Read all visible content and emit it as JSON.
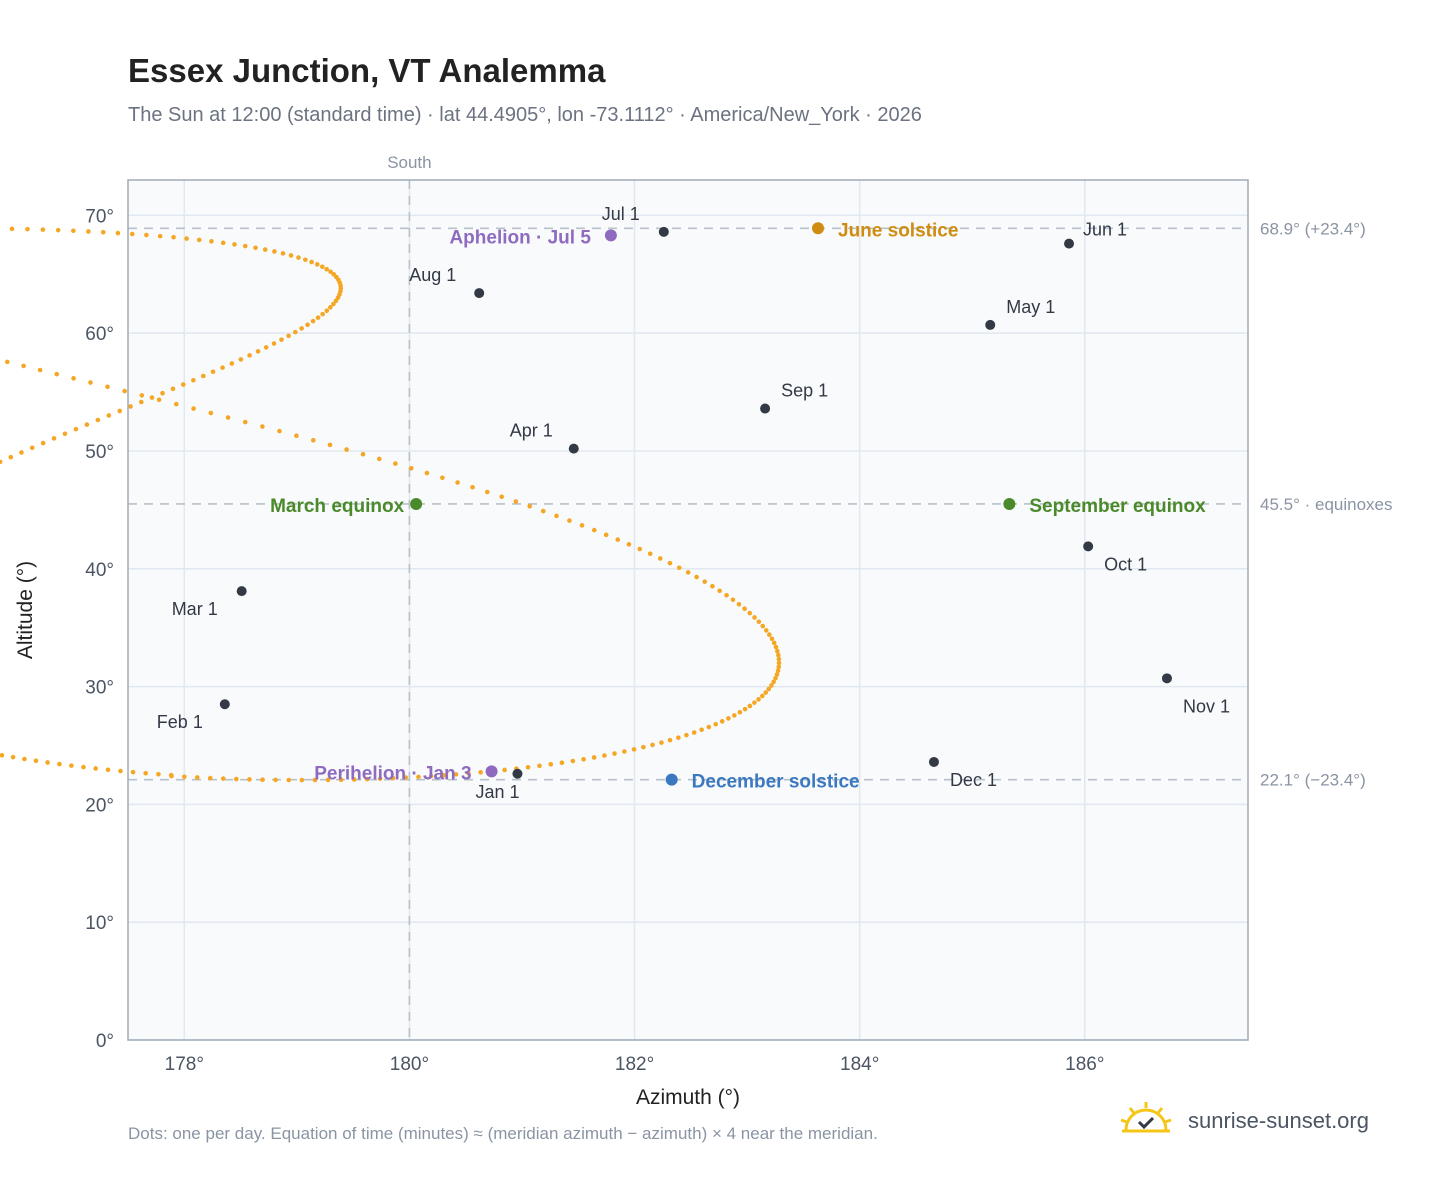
{
  "header": {
    "title": "Essex Junction, VT Analemma",
    "subtitle": "The Sun at 12:00 (standard time) · lat 44.4905°, lon -73.1112° · America/New_York · 2026"
  },
  "footer": {
    "note": "Dots: one per day. Equation of time (minutes) ≈ (meridian azimuth − azimuth) × 4 near the meridian.",
    "brand": "sunrise-sunset.org",
    "brand_icon": "sun-check-icon"
  },
  "colors": {
    "path": "#f5a623",
    "month_marker": "#333a45",
    "equinox": "#4a8a2a",
    "june_solstice": "#d08c10",
    "december_solstice": "#3a78c0",
    "apsis": "#8e6bbf",
    "reference_line": "#b8c2cc",
    "plot_bg": "#f8fafc",
    "grid": "#e2e8f0"
  },
  "chart_data": {
    "type": "scatter",
    "xlabel": "Azimuth (°)",
    "ylabel": "Altitude (°)",
    "xlim": [
      177.5,
      187.45
    ],
    "ylim": [
      0,
      73
    ],
    "x_ticks": [
      "178°",
      "180°",
      "182°",
      "184°",
      "186°"
    ],
    "y_ticks": [
      "0°",
      "10°",
      "20°",
      "30°",
      "40°",
      "50°",
      "60°",
      "70°"
    ],
    "grid": true,
    "meridian": {
      "azimuth": 180,
      "label": "South"
    },
    "reference_lines": [
      {
        "altitude": 68.9,
        "label": "68.9° (+23.4°)"
      },
      {
        "altitude": 45.5,
        "label": "45.5° · equinoxes"
      },
      {
        "altitude": 22.1,
        "label": "22.1° (−23.4°)"
      }
    ],
    "month_markers": [
      {
        "label": "Jan 1",
        "az": 180.96,
        "alt": 22.6
      },
      {
        "label": "Feb 1",
        "az": 178.36,
        "alt": 28.5
      },
      {
        "label": "Mar 1",
        "az": 178.51,
        "alt": 38.1
      },
      {
        "label": "Apr 1",
        "az": 181.46,
        "alt": 50.2
      },
      {
        "label": "May 1",
        "az": 185.16,
        "alt": 60.7
      },
      {
        "label": "Jun 1",
        "az": 185.86,
        "alt": 67.6
      },
      {
        "label": "Jul 1",
        "az": 182.26,
        "alt": 68.6
      },
      {
        "label": "Aug 1",
        "az": 180.62,
        "alt": 63.4
      },
      {
        "label": "Sep 1",
        "az": 183.16,
        "alt": 53.6
      },
      {
        "label": "Oct 1",
        "az": 186.03,
        "alt": 41.9
      },
      {
        "label": "Nov 1",
        "az": 186.73,
        "alt": 30.7
      },
      {
        "label": "Dec 1",
        "az": 184.66,
        "alt": 23.6
      }
    ],
    "events": [
      {
        "label": "March equinox",
        "az": 180.06,
        "alt": 45.5,
        "kind": "equinox"
      },
      {
        "label": "June solstice",
        "az": 183.63,
        "alt": 68.9,
        "kind": "june_solstice"
      },
      {
        "label": "September equinox",
        "az": 185.33,
        "alt": 45.5,
        "kind": "equinox"
      },
      {
        "label": "December solstice",
        "az": 182.33,
        "alt": 22.1,
        "kind": "december_solstice"
      },
      {
        "label": "Perihelion · Jan 3",
        "az": 180.73,
        "alt": 22.8,
        "kind": "apsis"
      },
      {
        "label": "Aphelion · Jul 5",
        "az": 181.79,
        "alt": 68.3,
        "kind": "apsis"
      }
    ]
  }
}
